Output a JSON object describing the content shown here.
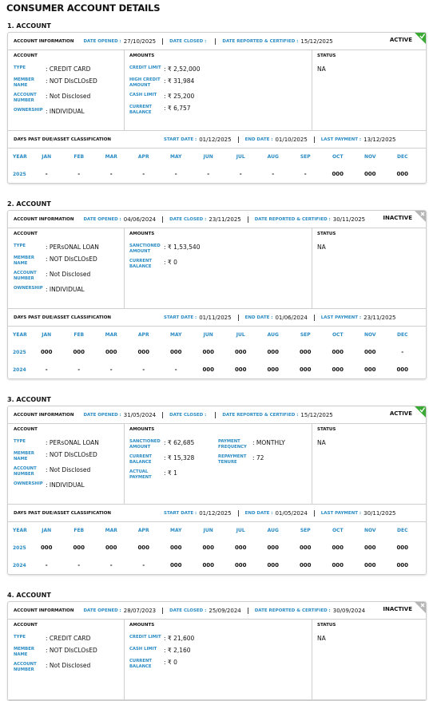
{
  "title": "CONSUMER ACCOUNT DETAILS",
  "accounts": [
    {
      "heading": "1. ACCOUNT",
      "status_badge": "ACTIVE",
      "badge_color": "#3aaa35",
      "info": {
        "label": "ACCOUNT INFORMATION",
        "fields": [
          {
            "label": "DATE OPENED :",
            "value": "27/10/2025"
          },
          {
            "label": "DATE CLOSED :"
          },
          {
            "label": "DATE REPORTED & CERTIFIED :",
            "value": "15/12/2025"
          }
        ]
      },
      "account": {
        "title": "ACCOUNT",
        "rows": [
          {
            "label": "TYPE",
            "value": ": CREDIT CARD"
          },
          {
            "label": "MEMBER NAME",
            "value": ": NOT DIsCLOsED"
          },
          {
            "label": "ACCOUNT NUMBER",
            "value": ": Not Disclosed"
          },
          {
            "label": "OWNERSHIP",
            "value": ": INDIVIDUAL"
          }
        ]
      },
      "amounts": {
        "title": "AMOUNTS",
        "rows": [
          {
            "label": "CREDIT LIMIT",
            "value": ": ₹ 2,52,000"
          },
          {
            "label": "HIGH CREDIT AMOUNT",
            "value": ": ₹ 31,984"
          },
          {
            "label": "CASH LIMIT",
            "value": ": ₹ 25,200"
          },
          {
            "label": "CURRENT BALANCE",
            "value": ": ₹ 6,757"
          }
        ]
      },
      "status": {
        "title": "STATUS",
        "text": "NA"
      },
      "dpd": {
        "label": "DAYS PAST DUE/ASSET CLASSIFICATION",
        "fields": [
          {
            "label": "START DATE :",
            "value": "01/12/2025"
          },
          {
            "label": "END DATE :",
            "value": "01/10/2025"
          },
          {
            "label": "LAST PAYMENT :",
            "value": "13/12/2025"
          }
        ]
      },
      "months": {
        "header": [
          "YEAR",
          "JAN",
          "FEB",
          "MAR",
          "APR",
          "MAY",
          "JUN",
          "JUL",
          "AUG",
          "SEP",
          "OCT",
          "NOV",
          "DEC"
        ],
        "rows": [
          [
            "2025",
            "-",
            "-",
            "-",
            "-",
            "-",
            "-",
            "-",
            "-",
            "-",
            "000",
            "000",
            "000"
          ]
        ]
      }
    },
    {
      "heading": "2. ACCOUNT",
      "status_badge": "INACTIVE",
      "badge_color": "#b5b5b5",
      "info": {
        "label": "ACCOUNT INFORMATION",
        "fields": [
          {
            "label": "DATE OPENED :",
            "value": "04/06/2024"
          },
          {
            "label": "DATE CLOSED :",
            "value": "23/11/2025"
          },
          {
            "label": "DATE REPORTED & CERTIFIED :",
            "value": "30/11/2025"
          }
        ]
      },
      "account": {
        "title": "ACCOUNT",
        "rows": [
          {
            "label": "TYPE",
            "value": ": PERsONAL LOAN"
          },
          {
            "label": "MEMBER NAME",
            "value": ": NOT DIsCLOsED"
          },
          {
            "label": "ACCOUNT NUMBER",
            "value": ": Not Disclosed"
          },
          {
            "label": "OWNERSHIP",
            "value": ": INDIVIDUAL"
          }
        ]
      },
      "amounts": {
        "title": "AMOUNTS",
        "rows": [
          {
            "label": "SANCTIONED AMOUNT",
            "value": ": ₹ 1,53,540"
          },
          {
            "label": "CURRENT BALANCE",
            "value": ": ₹ 0"
          }
        ]
      },
      "status": {
        "title": "STATUS",
        "text": "NA"
      },
      "dpd": {
        "label": "DAYS PAST DUE/ASSET CLASSIFICATION",
        "fields": [
          {
            "label": "START DATE :",
            "value": "01/11/2025"
          },
          {
            "label": "END DATE :",
            "value": "01/06/2024"
          },
          {
            "label": "LAST PAYMENT :",
            "value": "23/11/2025"
          }
        ]
      },
      "months": {
        "header": [
          "YEAR",
          "JAN",
          "FEB",
          "MAR",
          "APR",
          "MAY",
          "JUN",
          "JUL",
          "AUG",
          "SEP",
          "OCT",
          "NOV",
          "DEC"
        ],
        "rows": [
          [
            "2025",
            "000",
            "000",
            "000",
            "000",
            "000",
            "000",
            "000",
            "000",
            "000",
            "000",
            "000",
            "-"
          ],
          [
            "2024",
            "-",
            "-",
            "-",
            "-",
            "-",
            "000",
            "000",
            "000",
            "000",
            "000",
            "000",
            "000"
          ]
        ]
      }
    },
    {
      "heading": "3. ACCOUNT",
      "status_badge": "ACTIVE",
      "badge_color": "#3aaa35",
      "info": {
        "label": "ACCOUNT INFORMATION",
        "fields": [
          {
            "label": "DATE OPENED :",
            "value": "31/05/2024"
          },
          {
            "label": "DATE CLOSED :"
          },
          {
            "label": "DATE REPORTED & CERTIFIED :",
            "value": "15/12/2025"
          }
        ]
      },
      "account": {
        "title": "ACCOUNT",
        "rows": [
          {
            "label": "TYPE",
            "value": ": PERsONAL LOAN"
          },
          {
            "label": "MEMBER NAME",
            "value": ": NOT DIsCLOsED"
          },
          {
            "label": "ACCOUNT NUMBER",
            "value": ": Not Disclosed"
          },
          {
            "label": "OWNERSHIP",
            "value": ": INDIVIDUAL"
          }
        ]
      },
      "amounts": {
        "title": "AMOUNTS",
        "rows": [
          {
            "label": "SANCTIONED AMOUNT",
            "value": ": ₹ 62,685"
          },
          {
            "label": "CURRENT BALANCE",
            "value": ": ₹ 15,328"
          },
          {
            "label": "ACTUAL PAYMENT",
            "value": ": ₹ 1"
          }
        ],
        "rows_right": [
          {
            "label": "PAYMENT FREQUENCY",
            "value": ": MONTHLY"
          },
          {
            "label": "REPAYMENT TENURE",
            "value": ": 72"
          }
        ]
      },
      "status": {
        "title": "STATUS",
        "text": "NA"
      },
      "dpd": {
        "label": "DAYS PAST DUE/ASSET CLASSIFICATION",
        "fields": [
          {
            "label": "START DATE :",
            "value": "01/12/2025"
          },
          {
            "label": "END DATE :",
            "value": "01/05/2024"
          },
          {
            "label": "LAST PAYMENT :",
            "value": "30/11/2025"
          }
        ]
      },
      "months": {
        "header": [
          "YEAR",
          "JAN",
          "FEB",
          "MAR",
          "APR",
          "MAY",
          "JUN",
          "JUL",
          "AUG",
          "SEP",
          "OCT",
          "NOV",
          "DEC"
        ],
        "rows": [
          [
            "2025",
            "000",
            "000",
            "000",
            "000",
            "000",
            "000",
            "000",
            "000",
            "000",
            "000",
            "000",
            "000"
          ],
          [
            "2024",
            "-",
            "-",
            "-",
            "-",
            "000",
            "000",
            "000",
            "000",
            "000",
            "000",
            "000",
            "000"
          ]
        ]
      }
    },
    {
      "heading": "4. ACCOUNT",
      "status_badge": "INACTIVE",
      "badge_color": "#b5b5b5",
      "info": {
        "label": "ACCOUNT INFORMATION",
        "fields": [
          {
            "label": "DATE OPENED :",
            "value": "28/07/2023"
          },
          {
            "label": "DATE CLOSED :",
            "value": "25/09/2024"
          },
          {
            "label": "DATE REPORTED & CERTIFIED :",
            "value": "30/09/2024"
          }
        ]
      },
      "account": {
        "title": "ACCOUNT",
        "rows": [
          {
            "label": "TYPE",
            "value": ": CREDIT CARD"
          },
          {
            "label": "MEMBER NAME",
            "value": ": NOT DIsCLOsED"
          },
          {
            "label": "ACCOUNT NUMBER",
            "value": ": Not Disclosed"
          }
        ]
      },
      "amounts": {
        "title": "AMOUNTS",
        "rows": [
          {
            "label": "CREDIT LIMIT",
            "value": ": ₹ 21,600"
          },
          {
            "label": "CASH LIMIT",
            "value": ": ₹ 2,160"
          },
          {
            "label": "CURRENT BALANCE",
            "value": ": ₹ 0"
          }
        ]
      },
      "status": {
        "title": "STATUS",
        "text": "NA"
      }
    }
  ]
}
